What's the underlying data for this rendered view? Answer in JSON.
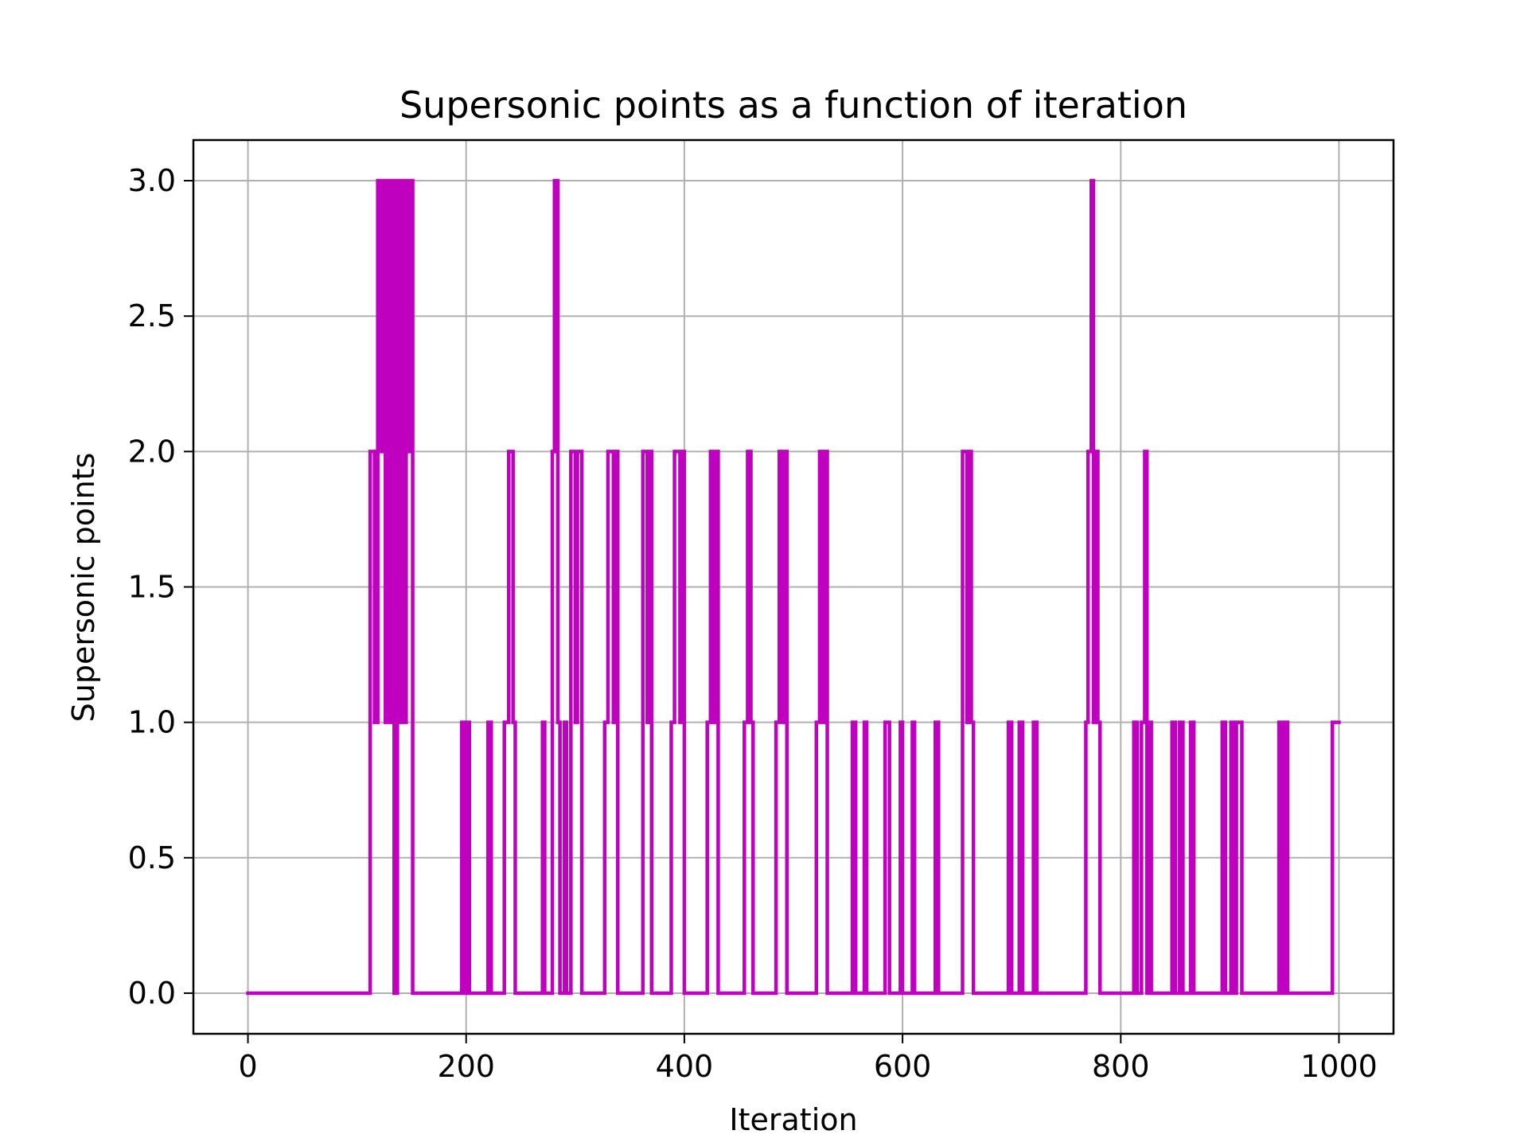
{
  "chart_data": {
    "type": "line",
    "title": "Supersonic points as a function of iteration",
    "xlabel": "Iteration",
    "ylabel": "Supersonic points",
    "xlim": [
      -50,
      1050
    ],
    "ylim": [
      -0.15,
      3.15
    ],
    "xticks": [
      0,
      200,
      400,
      600,
      800,
      1000
    ],
    "xtick_labels": [
      "0",
      "200",
      "400",
      "600",
      "800",
      "1000"
    ],
    "yticks": [
      0.0,
      0.5,
      1.0,
      1.5,
      2.0,
      2.5,
      3.0
    ],
    "ytick_labels": [
      "0.0",
      "0.5",
      "1.0",
      "1.5",
      "2.0",
      "2.5",
      "3.0"
    ],
    "grid": true,
    "line_color": "#bf00bf",
    "series": [
      {
        "name": "",
        "points": [
          [
            0,
            0
          ],
          [
            112,
            0
          ],
          [
            112,
            2
          ],
          [
            116,
            2
          ],
          [
            116,
            1
          ],
          [
            119,
            1
          ],
          [
            119,
            3
          ],
          [
            122,
            3
          ],
          [
            122,
            2
          ],
          [
            124,
            2
          ],
          [
            124,
            3
          ],
          [
            126,
            3
          ],
          [
            126,
            1
          ],
          [
            128,
            1
          ],
          [
            128,
            3
          ],
          [
            131,
            3
          ],
          [
            131,
            1
          ],
          [
            133,
            1
          ],
          [
            133,
            3
          ],
          [
            134,
            3
          ],
          [
            134,
            0
          ],
          [
            137,
            0
          ],
          [
            137,
            3
          ],
          [
            139,
            3
          ],
          [
            139,
            1
          ],
          [
            141,
            1
          ],
          [
            141,
            3
          ],
          [
            143,
            3
          ],
          [
            143,
            1
          ],
          [
            145,
            1
          ],
          [
            145,
            3
          ],
          [
            147,
            3
          ],
          [
            147,
            2
          ],
          [
            149,
            2
          ],
          [
            149,
            3
          ],
          [
            151,
            3
          ],
          [
            151,
            0
          ],
          [
            196,
            0
          ],
          [
            196,
            1
          ],
          [
            199,
            1
          ],
          [
            199,
            0
          ],
          [
            201,
            0
          ],
          [
            201,
            1
          ],
          [
            203,
            1
          ],
          [
            203,
            0
          ],
          [
            220,
            0
          ],
          [
            220,
            1
          ],
          [
            223,
            1
          ],
          [
            223,
            0
          ],
          [
            235,
            0
          ],
          [
            235,
            1
          ],
          [
            239,
            1
          ],
          [
            239,
            2
          ],
          [
            243,
            2
          ],
          [
            243,
            1
          ],
          [
            245,
            1
          ],
          [
            245,
            0
          ],
          [
            270,
            0
          ],
          [
            270,
            1
          ],
          [
            272,
            1
          ],
          [
            272,
            0
          ],
          [
            279,
            0
          ],
          [
            279,
            2
          ],
          [
            281,
            2
          ],
          [
            281,
            3
          ],
          [
            284,
            3
          ],
          [
            284,
            1
          ],
          [
            286,
            1
          ],
          [
            286,
            0
          ],
          [
            290,
            0
          ],
          [
            290,
            1
          ],
          [
            292,
            1
          ],
          [
            292,
            0
          ],
          [
            296,
            0
          ],
          [
            296,
            2
          ],
          [
            300,
            2
          ],
          [
            300,
            1
          ],
          [
            302,
            1
          ],
          [
            302,
            2
          ],
          [
            306,
            2
          ],
          [
            306,
            0
          ],
          [
            327,
            0
          ],
          [
            327,
            1
          ],
          [
            330,
            1
          ],
          [
            330,
            2
          ],
          [
            335,
            2
          ],
          [
            335,
            1
          ],
          [
            337,
            1
          ],
          [
            337,
            2
          ],
          [
            339,
            2
          ],
          [
            339,
            0
          ],
          [
            362,
            0
          ],
          [
            362,
            2
          ],
          [
            366,
            2
          ],
          [
            366,
            1
          ],
          [
            368,
            1
          ],
          [
            368,
            2
          ],
          [
            370,
            2
          ],
          [
            370,
            0
          ],
          [
            388,
            0
          ],
          [
            388,
            1
          ],
          [
            391,
            1
          ],
          [
            391,
            2
          ],
          [
            396,
            2
          ],
          [
            396,
            1
          ],
          [
            398,
            1
          ],
          [
            398,
            2
          ],
          [
            400,
            2
          ],
          [
            400,
            0
          ],
          [
            421,
            0
          ],
          [
            421,
            1
          ],
          [
            424,
            1
          ],
          [
            424,
            2
          ],
          [
            427,
            2
          ],
          [
            427,
            1
          ],
          [
            429,
            1
          ],
          [
            429,
            2
          ],
          [
            431,
            2
          ],
          [
            431,
            0
          ],
          [
            455,
            0
          ],
          [
            455,
            1
          ],
          [
            458,
            1
          ],
          [
            458,
            2
          ],
          [
            461,
            2
          ],
          [
            461,
            1
          ],
          [
            463,
            1
          ],
          [
            463,
            0
          ],
          [
            484,
            0
          ],
          [
            484,
            1
          ],
          [
            487,
            1
          ],
          [
            487,
            2
          ],
          [
            490,
            2
          ],
          [
            490,
            1
          ],
          [
            492,
            1
          ],
          [
            492,
            2
          ],
          [
            494,
            2
          ],
          [
            494,
            0
          ],
          [
            521,
            0
          ],
          [
            521,
            1
          ],
          [
            524,
            1
          ],
          [
            524,
            2
          ],
          [
            527,
            2
          ],
          [
            527,
            1
          ],
          [
            529,
            1
          ],
          [
            529,
            2
          ],
          [
            531,
            2
          ],
          [
            531,
            0
          ],
          [
            554,
            0
          ],
          [
            554,
            1
          ],
          [
            557,
            1
          ],
          [
            557,
            0
          ],
          [
            565,
            0
          ],
          [
            565,
            1
          ],
          [
            567,
            1
          ],
          [
            567,
            0
          ],
          [
            584,
            0
          ],
          [
            584,
            1
          ],
          [
            588,
            1
          ],
          [
            588,
            0
          ],
          [
            598,
            0
          ],
          [
            598,
            1
          ],
          [
            600,
            1
          ],
          [
            600,
            0
          ],
          [
            609,
            0
          ],
          [
            609,
            1
          ],
          [
            611,
            1
          ],
          [
            611,
            0
          ],
          [
            630,
            0
          ],
          [
            630,
            1
          ],
          [
            633,
            1
          ],
          [
            633,
            0
          ],
          [
            655,
            0
          ],
          [
            655,
            2
          ],
          [
            659,
            2
          ],
          [
            659,
            1
          ],
          [
            661,
            1
          ],
          [
            661,
            2
          ],
          [
            663,
            2
          ],
          [
            663,
            1
          ],
          [
            665,
            1
          ],
          [
            665,
            0
          ],
          [
            697,
            0
          ],
          [
            697,
            1
          ],
          [
            700,
            1
          ],
          [
            700,
            0
          ],
          [
            707,
            0
          ],
          [
            707,
            1
          ],
          [
            710,
            1
          ],
          [
            710,
            0
          ],
          [
            720,
            0
          ],
          [
            720,
            1
          ],
          [
            723,
            1
          ],
          [
            723,
            0
          ],
          [
            768,
            0
          ],
          [
            768,
            1
          ],
          [
            770,
            1
          ],
          [
            770,
            2
          ],
          [
            773,
            2
          ],
          [
            773,
            3
          ],
          [
            775,
            3
          ],
          [
            775,
            1
          ],
          [
            777,
            1
          ],
          [
            777,
            2
          ],
          [
            779,
            2
          ],
          [
            779,
            1
          ],
          [
            781,
            1
          ],
          [
            781,
            0
          ],
          [
            812,
            0
          ],
          [
            812,
            1
          ],
          [
            815,
            1
          ],
          [
            815,
            0
          ],
          [
            819,
            0
          ],
          [
            819,
            1
          ],
          [
            822,
            1
          ],
          [
            822,
            2
          ],
          [
            824,
            2
          ],
          [
            824,
            0
          ],
          [
            826,
            0
          ],
          [
            826,
            1
          ],
          [
            828,
            1
          ],
          [
            828,
            0
          ],
          [
            847,
            0
          ],
          [
            847,
            1
          ],
          [
            850,
            1
          ],
          [
            850,
            0
          ],
          [
            854,
            0
          ],
          [
            854,
            1
          ],
          [
            857,
            1
          ],
          [
            857,
            0
          ],
          [
            864,
            0
          ],
          [
            864,
            1
          ],
          [
            867,
            1
          ],
          [
            867,
            0
          ],
          [
            893,
            0
          ],
          [
            893,
            1
          ],
          [
            896,
            1
          ],
          [
            896,
            0
          ],
          [
            901,
            0
          ],
          [
            901,
            1
          ],
          [
            904,
            1
          ],
          [
            904,
            0
          ],
          [
            906,
            0
          ],
          [
            906,
            1
          ],
          [
            911,
            1
          ],
          [
            911,
            0
          ],
          [
            945,
            0
          ],
          [
            945,
            1
          ],
          [
            948,
            1
          ],
          [
            948,
            0
          ],
          [
            950,
            0
          ],
          [
            950,
            1
          ],
          [
            953,
            1
          ],
          [
            953,
            0
          ],
          [
            994,
            0
          ],
          [
            994,
            1
          ],
          [
            1000,
            1
          ]
        ]
      }
    ]
  }
}
